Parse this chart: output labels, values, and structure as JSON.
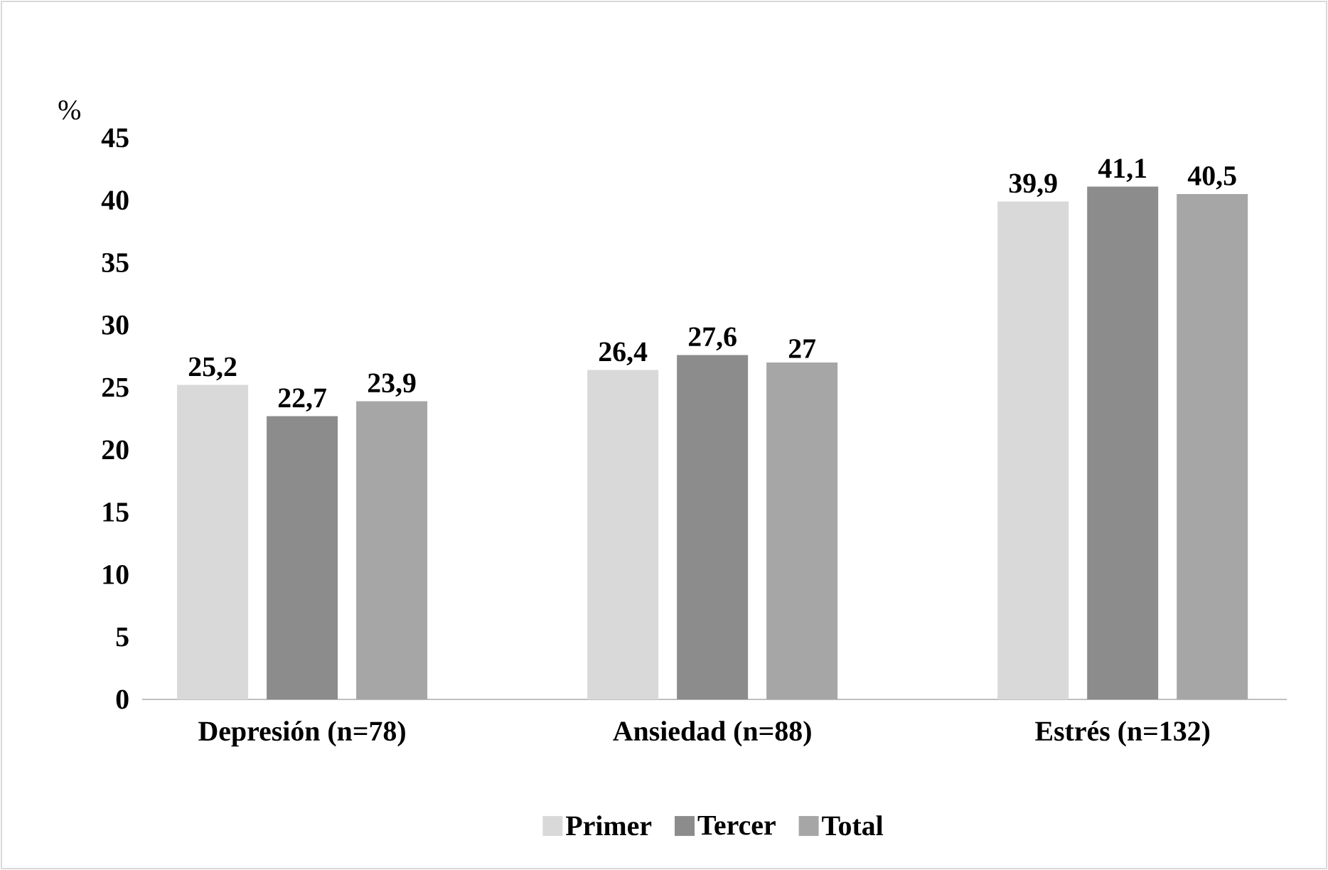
{
  "chart_data": {
    "type": "bar",
    "ylabel": "%",
    "categories": [
      "Depresión (n=78)",
      "Ansiedad (n=88)",
      "Estrés (n=132)"
    ],
    "series": [
      {
        "name": "Primer",
        "color": "#d9d9d9",
        "values": [
          25.2,
          26.4,
          39.9
        ],
        "value_labels": [
          "25,2",
          "26,4",
          "39,9"
        ]
      },
      {
        "name": "Tercer",
        "color": "#8c8c8c",
        "values": [
          22.7,
          27.6,
          41.1
        ],
        "value_labels": [
          "22,7",
          "27,6",
          "41,1"
        ]
      },
      {
        "name": "Total",
        "color": "#a6a6a6",
        "values": [
          23.9,
          27,
          40.5
        ],
        "value_labels": [
          "23,9",
          "27",
          "40,5"
        ]
      }
    ],
    "ylim": [
      0,
      45
    ],
    "yticks": [
      0,
      5,
      10,
      15,
      20,
      25,
      30,
      35,
      40,
      45
    ],
    "legend": "bottom"
  }
}
